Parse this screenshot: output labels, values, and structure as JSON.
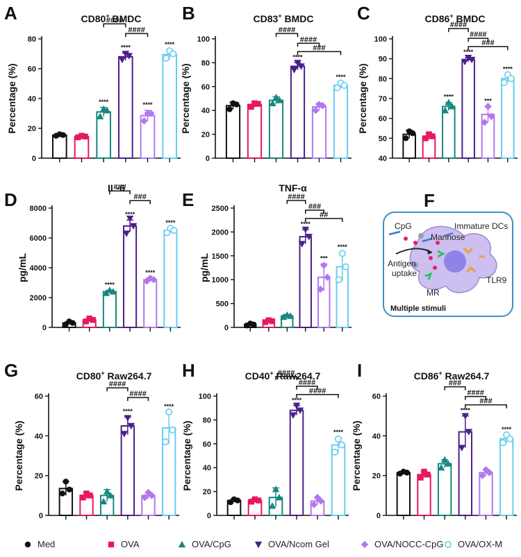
{
  "colors": {
    "Med": "#111111",
    "OVA": "#e8185c",
    "OVA/CpG": "#17877f",
    "OVA/Ncom Gel": "#4b1e8a",
    "OVA/NOCC-CpG": "#b276ef",
    "OVA/OX-M": "#67cdf0"
  },
  "markers": {
    "Med": "circle",
    "OVA": "square",
    "OVA/CpG": "triangle-up",
    "OVA/Ncom Gel": "triangle-down",
    "OVA/NOCC-CpG": "diamond",
    "OVA/OX-M": "open-circle"
  },
  "legend": {
    "items": [
      "Med",
      "OVA",
      "OVA/CpG",
      "OVA/Ncom Gel",
      "OVA/NOCC-CpG",
      "OVA/OX-M"
    ]
  },
  "chart_data": [
    {
      "letter": "A",
      "title_main": "CD80",
      "title_sup": "+",
      "title_rest": " BMDC",
      "ylabel": "Percentage (%)",
      "type": "bar",
      "ylim": [
        0,
        80
      ],
      "yticks": [
        0,
        20,
        40,
        60,
        80
      ],
      "groups": [
        "Med",
        "OVA",
        "OVA/CpG",
        "OVA/Ncom Gel",
        "OVA/NOCC-CpG",
        "OVA/OX-M"
      ],
      "values": [
        15.5,
        14.5,
        31,
        68,
        28.5,
        69.5
      ],
      "errors": [
        1,
        1,
        3,
        2.5,
        3.5,
        3
      ],
      "points": [
        [
          15,
          16,
          15.5
        ],
        [
          14,
          15,
          14.5
        ],
        [
          28,
          33,
          32
        ],
        [
          66,
          70,
          68.5
        ],
        [
          25,
          30,
          30
        ],
        [
          67,
          72,
          70
        ]
      ],
      "stars": [
        "",
        "",
        "****",
        "****",
        "****",
        "****"
      ],
      "brackets": [
        {
          "from": 2,
          "to": 3,
          "label": "####"
        },
        {
          "from": 3,
          "to": 4,
          "label": "####"
        }
      ]
    },
    {
      "letter": "B",
      "title_main": "CD83",
      "title_sup": "+",
      "title_rest": " BMDC",
      "ylabel": "Percentage (%)",
      "type": "bar",
      "ylim": [
        0,
        100
      ],
      "yticks": [
        0,
        20,
        40,
        60,
        80,
        100
      ],
      "groups": [
        "Med",
        "OVA",
        "OVA/CpG",
        "OVA/Ncom Gel",
        "OVA/NOCC-CpG",
        "OVA/OX-M"
      ],
      "values": [
        44,
        45,
        48.5,
        77,
        43,
        61
      ],
      "errors": [
        3,
        2.5,
        3,
        3,
        3,
        2.5
      ],
      "points": [
        [
          41,
          46,
          45
        ],
        [
          43,
          46,
          45.5
        ],
        [
          46,
          51,
          48.5
        ],
        [
          74,
          80,
          77
        ],
        [
          40,
          45,
          44
        ],
        [
          59,
          63,
          61
        ]
      ],
      "stars": [
        "",
        "",
        "",
        "****",
        "",
        "****"
      ],
      "brackets": [
        {
          "from": 2,
          "to": 3,
          "label": "####"
        },
        {
          "from": 3,
          "to": 4,
          "label": "####"
        },
        {
          "from": 3,
          "to": 5,
          "label": "###"
        }
      ]
    },
    {
      "letter": "C",
      "title_main": "CD86",
      "title_sup": "+",
      "title_rest": " BMDC",
      "ylabel": "Percentage (%)",
      "type": "bar",
      "ylim": [
        40,
        100
      ],
      "yticks": [
        40,
        50,
        60,
        70,
        80,
        90,
        100
      ],
      "groups": [
        "Med",
        "OVA",
        "OVA/CpG",
        "OVA/Ncom Gel",
        "OVA/NOCC-CpG",
        "OVA/OX-M"
      ],
      "values": [
        52,
        51,
        66,
        89.5,
        62,
        80
      ],
      "errors": [
        2,
        1.5,
        2,
        1,
        4,
        2
      ],
      "points": [
        [
          50,
          53.5,
          52.5
        ],
        [
          50,
          52,
          51
        ],
        [
          64,
          68,
          66
        ],
        [
          88.5,
          90.5,
          89.5
        ],
        [
          58,
          66,
          61
        ],
        [
          78,
          82,
          80
        ]
      ],
      "stars": [
        "",
        "",
        "****",
        "****",
        "***",
        "****"
      ],
      "brackets": [
        {
          "from": 2,
          "to": 3,
          "label": "####"
        },
        {
          "from": 3,
          "to": 4,
          "label": "####"
        },
        {
          "from": 3,
          "to": 5,
          "label": "###"
        }
      ]
    },
    {
      "letter": "D",
      "title_main": "IL-6",
      "title_sup": "",
      "title_rest": "",
      "ylabel": "pg/mL",
      "type": "bar",
      "ylim": [
        0,
        8000
      ],
      "yticks": [
        0,
        2000,
        4000,
        6000,
        8000
      ],
      "groups": [
        "Med",
        "OVA",
        "OVA/CpG",
        "OVA/Ncom Gel",
        "OVA/NOCC-CpG",
        "OVA/OX-M"
      ],
      "values": [
        300,
        500,
        2400,
        6800,
        3200,
        6500
      ],
      "errors": [
        100,
        120,
        100,
        400,
        100,
        150
      ],
      "points": [
        [
          200,
          400,
          300
        ],
        [
          400,
          600,
          500
        ],
        [
          2300,
          2500,
          2400
        ],
        [
          6300,
          7300,
          6800
        ],
        [
          3100,
          3300,
          3200
        ],
        [
          6350,
          6650,
          6500
        ]
      ],
      "stars": [
        "",
        "",
        "****",
        "****",
        "****",
        "****"
      ],
      "brackets": [
        {
          "from": 2,
          "to": 3,
          "label": "###"
        },
        {
          "from": 3,
          "to": 4,
          "label": "###"
        }
      ]
    },
    {
      "letter": "E",
      "title_main": "TNF-α",
      "title_sup": "",
      "title_rest": "",
      "ylabel": "pg/mL",
      "type": "bar",
      "ylim": [
        0,
        2500
      ],
      "yticks": [
        0,
        500,
        1000,
        1500,
        2000,
        2500
      ],
      "groups": [
        "Med",
        "OVA",
        "OVA/CpG",
        "OVA/Ncom Gel",
        "OVA/NOCC-CpG",
        "OVA/OX-M"
      ],
      "values": [
        60,
        130,
        240,
        1900,
        1050,
        1270
      ],
      "errors": [
        30,
        30,
        30,
        150,
        280,
        300
      ],
      "points": [
        [
          40,
          80,
          60
        ],
        [
          110,
          150,
          130
        ],
        [
          220,
          260,
          240
        ],
        [
          1750,
          2050,
          1900
        ],
        [
          800,
          1300,
          1050
        ],
        [
          1000,
          1550,
          1270
        ]
      ],
      "stars": [
        "",
        "",
        "",
        "****",
        "***",
        "****"
      ],
      "brackets": [
        {
          "from": 2,
          "to": 3,
          "label": "####"
        },
        {
          "from": 3,
          "to": 4,
          "label": "###"
        },
        {
          "from": 3,
          "to": 5,
          "label": "##"
        }
      ]
    },
    {
      "letter": "G",
      "title_main": "CD80",
      "title_sup": "+",
      "title_rest": " Raw264.7",
      "ylabel": "Percentage (%)",
      "type": "bar",
      "ylim": [
        0,
        60
      ],
      "yticks": [
        0,
        20,
        40,
        60
      ],
      "groups": [
        "Med",
        "OVA",
        "OVA/CpG",
        "OVA/Ncom Gel",
        "OVA/NOCC-CpG",
        "OVA/OX-M"
      ],
      "values": [
        13.5,
        10,
        10,
        45,
        10,
        44
      ],
      "errors": [
        3.5,
        1.5,
        3,
        4.5,
        1.5,
        8
      ],
      "points": [
        [
          11,
          17,
          13
        ],
        [
          9,
          11,
          10
        ],
        [
          7,
          12,
          10
        ],
        [
          41,
          49,
          45
        ],
        [
          9,
          11.5,
          10
        ],
        [
          37,
          52,
          43
        ]
      ],
      "stars": [
        "",
        "",
        "",
        "****",
        "",
        "****"
      ],
      "brackets": [
        {
          "from": 2,
          "to": 3,
          "label": "####"
        },
        {
          "from": 3,
          "to": 4,
          "label": "####"
        }
      ]
    },
    {
      "letter": "H",
      "title_main": "CD40",
      "title_sup": "+",
      "title_rest": " Raw264.7",
      "ylabel": "Percentage (%)",
      "type": "bar",
      "ylim": [
        0,
        100
      ],
      "yticks": [
        0,
        20,
        40,
        60,
        80,
        100
      ],
      "groups": [
        "Med",
        "OVA",
        "OVA/CpG",
        "OVA/Ncom Gel",
        "OVA/NOCC-CpG",
        "OVA/OX-M"
      ],
      "values": [
        12.5,
        12.5,
        15,
        88,
        12,
        59
      ],
      "errors": [
        1.5,
        1.5,
        8,
        4,
        3,
        6
      ],
      "points": [
        [
          11,
          13.5,
          12.5
        ],
        [
          11.5,
          13.5,
          12.5
        ],
        [
          8,
          22,
          15
        ],
        [
          84,
          92,
          88
        ],
        [
          9,
          15,
          12
        ],
        [
          53,
          64,
          59
        ]
      ],
      "stars": [
        "",
        "",
        "",
        "****",
        "",
        "****"
      ],
      "brackets": [
        {
          "from": 2,
          "to": 3,
          "label": "####"
        },
        {
          "from": 3,
          "to": 4,
          "label": "####"
        },
        {
          "from": 3,
          "to": 5,
          "label": "####"
        }
      ]
    },
    {
      "letter": "I",
      "title_main": "CD86",
      "title_sup": "+",
      "title_rest": " Raw264.7",
      "ylabel": "Percentage (%)",
      "type": "bar",
      "ylim": [
        0,
        60
      ],
      "yticks": [
        0,
        20,
        40,
        60
      ],
      "groups": [
        "Med",
        "OVA",
        "OVA/CpG",
        "OVA/Ncom Gel",
        "OVA/NOCC-CpG",
        "OVA/OX-M"
      ],
      "values": [
        21.5,
        20.5,
        26,
        42,
        21.5,
        38.5
      ],
      "errors": [
        0.5,
        1.5,
        2,
        8,
        1.5,
        2
      ],
      "points": [
        [
          21,
          22,
          21.5
        ],
        [
          19,
          22,
          20.5
        ],
        [
          24,
          28,
          26
        ],
        [
          34,
          50,
          42
        ],
        [
          20,
          23,
          21.5
        ],
        [
          36.5,
          40.5,
          38.5
        ]
      ],
      "stars": [
        "",
        "",
        "",
        "****",
        "",
        "****"
      ],
      "brackets": [
        {
          "from": 2,
          "to": 3,
          "label": "###"
        },
        {
          "from": 3,
          "to": 4,
          "label": "####"
        },
        {
          "from": 3,
          "to": 5,
          "label": "###"
        }
      ]
    }
  ],
  "schematic": {
    "letter": "F",
    "cpg_label": "CpG",
    "immature_label": "Immature DCs",
    "mannose_label": "Mannose",
    "antigen_label": "Antigen",
    "uptake_label": "uptake",
    "tlr9_label": "TLR9",
    "mr_label": "MR",
    "footer_label": "Multiple stimuli"
  }
}
